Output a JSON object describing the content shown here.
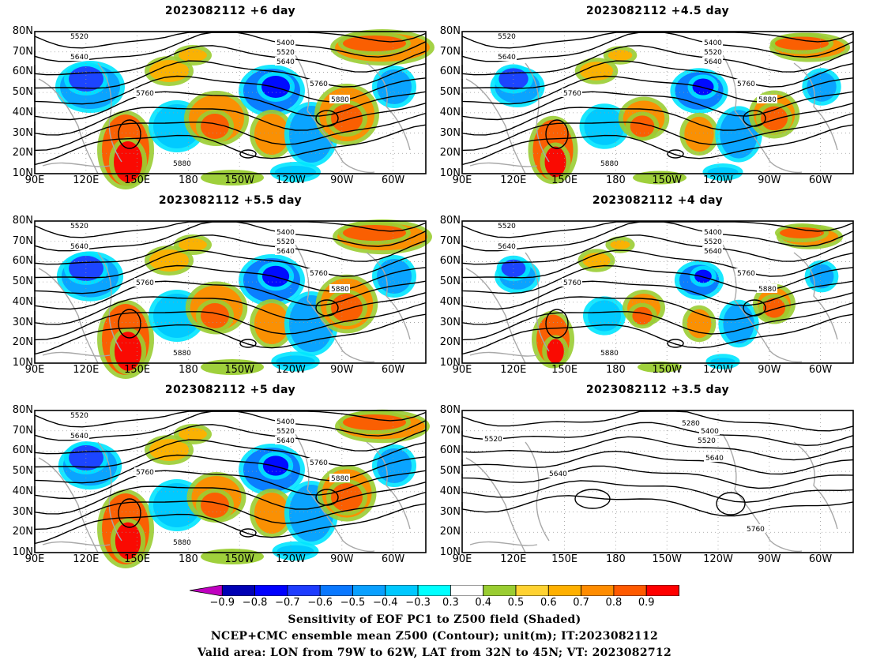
{
  "panels": [
    {
      "title": "2023082112  +6 day",
      "labels": [
        "5520",
        "5400",
        "5520",
        "5640",
        "5640",
        "5760",
        "5760",
        "5880",
        "5880"
      ],
      "variant": 1.0
    },
    {
      "title": "2023082112  +4.5 day",
      "labels": [
        "5520",
        "5400",
        "5520",
        "5640",
        "5640",
        "5760",
        "5760",
        "5880",
        "5880"
      ],
      "variant": 0.75
    },
    {
      "title": "2023082112  +5.5 day",
      "labels": [
        "5520",
        "5400",
        "5520",
        "5640",
        "5640",
        "5760",
        "5760",
        "5880",
        "5880"
      ],
      "variant": 0.95
    },
    {
      "title": "2023082112  +4 day",
      "labels": [
        "5520",
        "5400",
        "5520",
        "5640",
        "5640",
        "5760",
        "5760",
        "5880",
        "5880"
      ],
      "variant": 0.6
    },
    {
      "title": "2023082112  +5 day",
      "labels": [
        "5520",
        "5400",
        "5520",
        "5640",
        "5640",
        "5760",
        "5760",
        "5880",
        "5880"
      ],
      "variant": 0.9
    },
    {
      "title": "2023082112  +3.5 day",
      "labels": [
        "5280",
        "5400",
        "5520",
        "5520",
        "5640",
        "5640",
        "5760"
      ],
      "variant": 0
    }
  ],
  "axes": {
    "lat_labels": [
      "80N",
      "70N",
      "60N",
      "50N",
      "40N",
      "30N",
      "20N",
      "10N"
    ],
    "lon_labels": [
      "90E",
      "120E",
      "150E",
      "180",
      "150W",
      "120W",
      "90W",
      "60W"
    ]
  },
  "colorbar": {
    "labels": [
      "−0.9",
      "−0.8",
      "−0.7",
      "−0.6",
      "−0.5",
      "−0.4",
      "−0.3",
      "0.3",
      "0.4",
      "0.5",
      "0.6",
      "0.7",
      "0.8",
      "0.9"
    ],
    "colors": [
      "#c000c0",
      "#0000b4",
      "#0000ff",
      "#1e3cff",
      "#0a78ff",
      "#0aa0ff",
      "#00c8ff",
      "#00ffff",
      "#ffffff",
      "#9acd32",
      "#ffd232",
      "#ffb000",
      "#ff8c00",
      "#ff5a00",
      "#ff0000",
      "#ffa0c8"
    ]
  },
  "caption": {
    "line1": "Sensitivity of EOF PC1 to Z500 field (Shaded)",
    "line2": "NCEP+CMC ensemble mean Z500 (Contour); unit(m); IT:2023082112",
    "line3": "Valid area: LON from 79W to 62W, LAT from 32N to 45N; VT: 2023082712"
  }
}
